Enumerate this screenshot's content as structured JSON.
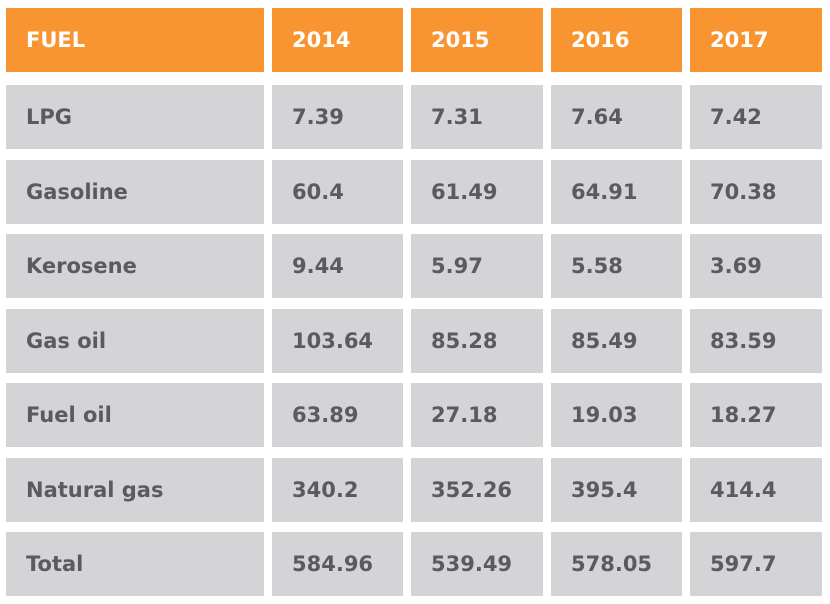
{
  "table": {
    "header": [
      "FUEL",
      "2014",
      "2015",
      "2016",
      "2017"
    ],
    "rows": [
      [
        "LPG",
        7.39,
        7.31,
        7.64,
        7.42
      ],
      [
        "Gasoline",
        60.4,
        61.49,
        64.91,
        70.38
      ],
      [
        "Kerosene",
        9.44,
        5.97,
        5.58,
        3.69
      ],
      [
        "Gas oil",
        103.64,
        85.28,
        85.49,
        83.59
      ],
      [
        "Fuel oil",
        63.89,
        27.18,
        19.03,
        18.27
      ],
      [
        "Natural gas",
        340.2,
        352.26,
        395.4,
        414.4
      ],
      [
        "Total",
        584.96,
        539.49,
        578.05,
        597.7
      ]
    ]
  }
}
